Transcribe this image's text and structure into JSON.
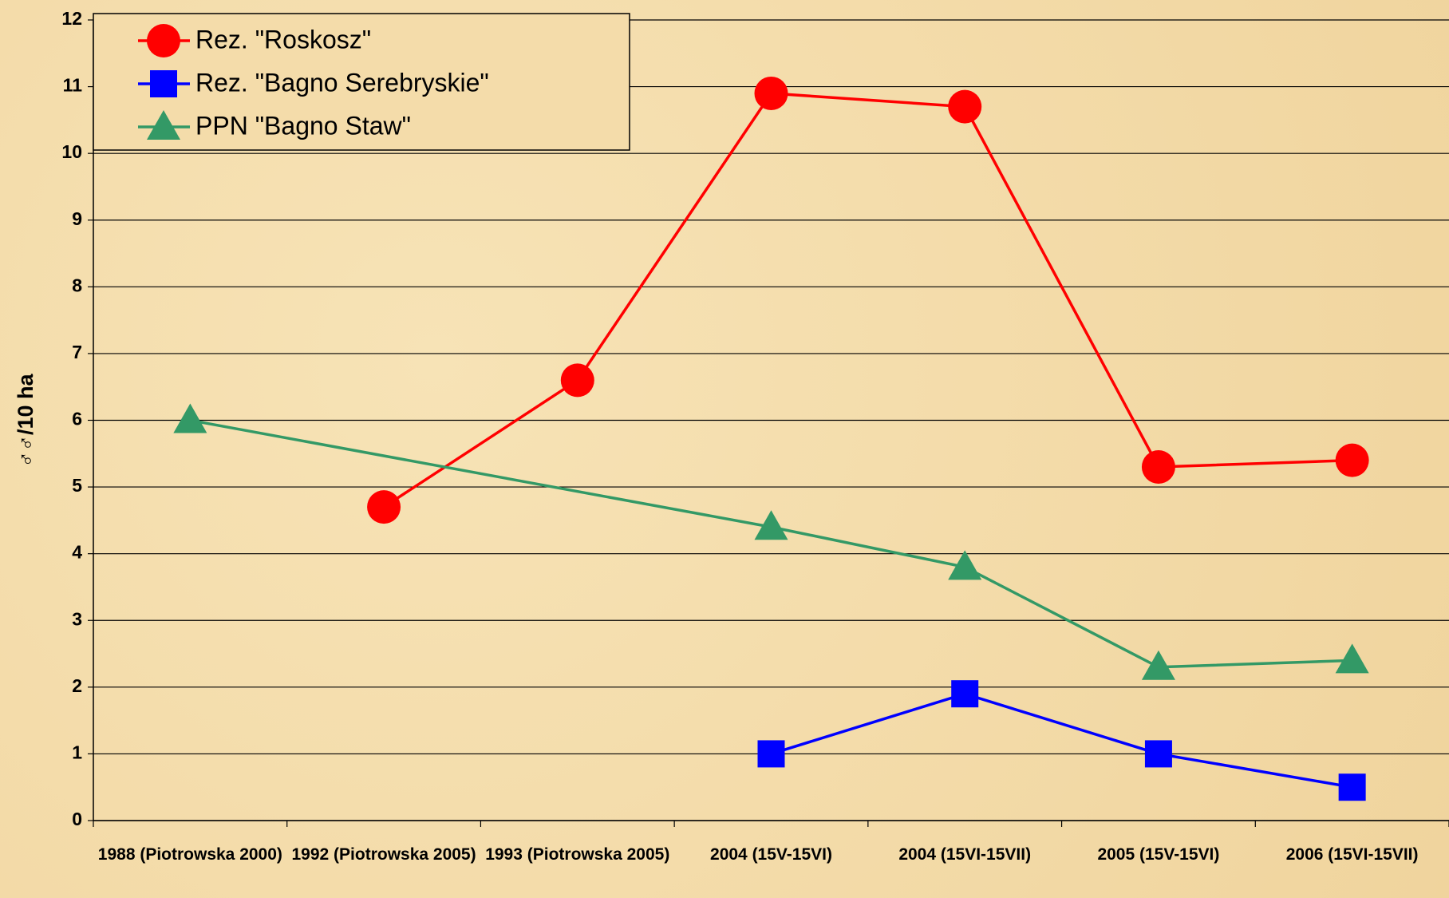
{
  "chart_data": {
    "type": "line",
    "y_label": "♂♂/10 ha",
    "categories": [
      "1988 (Piotrowska 2000)",
      "1992 (Piotrowska 2005)",
      "1993 (Piotrowska 2005)",
      "2004 (15V-15VI)",
      "2004 (15VI-15VII)",
      "2005 (15V-15VI)",
      "2006 (15VI-15VII)"
    ],
    "series": [
      {
        "name": "Rez. \"Roskosz\"",
        "color": "#ff0000",
        "marker": "circle",
        "values": [
          null,
          4.7,
          6.6,
          10.9,
          10.7,
          5.3,
          5.4
        ]
      },
      {
        "name": "Rez. \"Bagno Serebryskie\"",
        "color": "#0000ff",
        "marker": "square",
        "values": [
          null,
          null,
          null,
          1.0,
          1.9,
          1.0,
          0.5
        ]
      },
      {
        "name": "PPN \"Bagno Staw\"",
        "color": "#339966",
        "marker": "triangle",
        "values": [
          6.0,
          null,
          null,
          4.4,
          3.8,
          2.3,
          2.4
        ]
      }
    ],
    "ylim": [
      0,
      12
    ],
    "yticks": [
      0,
      1,
      2,
      3,
      4,
      5,
      6,
      7,
      8,
      9,
      10,
      11,
      12
    ],
    "grid": true,
    "span_gaps": true,
    "legend": "top-left"
  }
}
